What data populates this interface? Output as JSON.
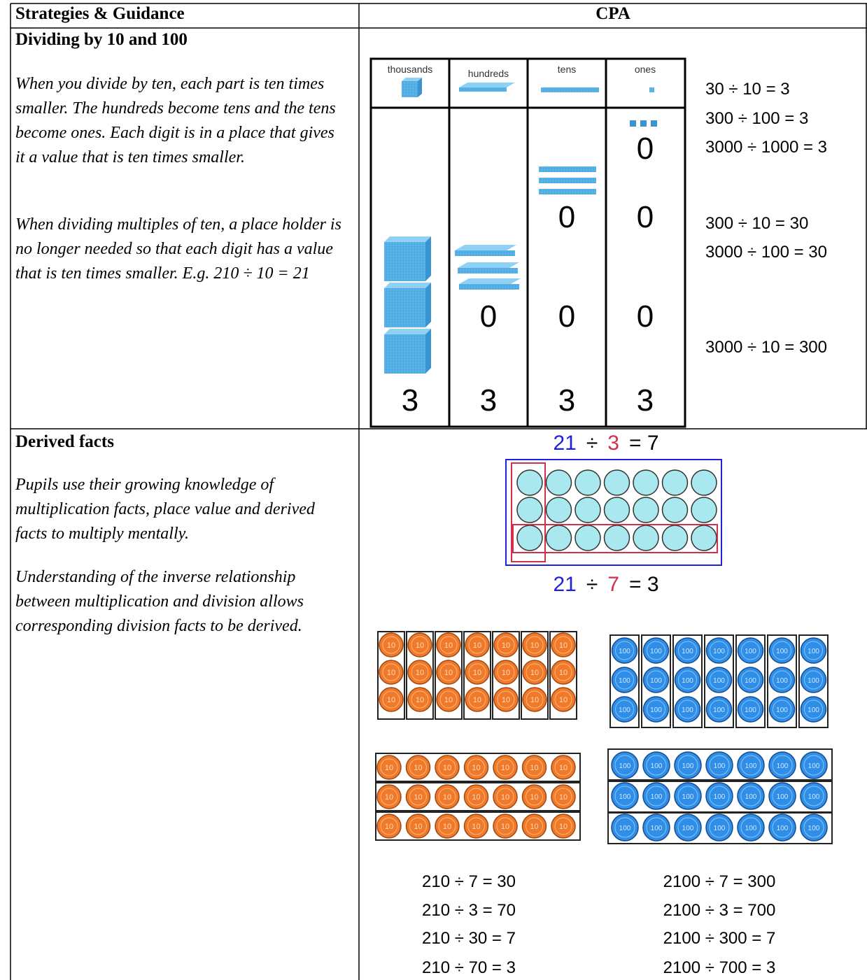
{
  "header": {
    "left": "Strategies & Guidance",
    "right": "CPA"
  },
  "rows": [
    {
      "title": "Dividing by 10 and 100",
      "paragraphs": [
        "When you divide by ten, each part is ten times smaller. The hundreds become tens and the tens become ones. Each digit is in a place that gives it a value that is ten times smaller.",
        "When dividing multiples of ten, a place holder is no longer needed so that each digit has a value that is ten times smaller. E.g. 210 ÷ 10 = 21"
      ],
      "place_value": {
        "columns": [
          {
            "label": "thousands",
            "digits": [
              "3"
            ]
          },
          {
            "label": "hundreds",
            "digits": [
              "3",
              "0"
            ]
          },
          {
            "label": "tens",
            "digits": [
              "3",
              "0",
              "0"
            ]
          },
          {
            "label": "ones",
            "digits": [
              "3",
              "0",
              "0",
              "0"
            ]
          }
        ]
      },
      "equations": [
        [
          "30 ÷ 10 = 3",
          "300 ÷ 100 = 3",
          "3000 ÷ 1000 = 3"
        ],
        [
          "300 ÷ 10 = 30",
          "3000 ÷ 100 = 30"
        ],
        [
          "3000 ÷ 10 = 300"
        ]
      ]
    },
    {
      "title": "Derived facts",
      "paragraphs": [
        "Pupils use their growing knowledge of multiplication facts, place value and derived facts to multiply mentally.",
        "Understanding of the inverse relationship between multiplication and division allows corresponding division facts to be derived."
      ],
      "array_equations": [
        {
          "dividend": "21",
          "sign": "÷",
          "divisor": "3",
          "result": "= 7"
        },
        {
          "dividend": "21",
          "sign": "÷",
          "divisor": "7",
          "result": "= 3"
        }
      ],
      "counters": {
        "tens": "10",
        "hundreds": "100"
      },
      "equations": {
        "tens": [
          "210 ÷ 7 = 30",
          "210 ÷ 3 = 70",
          "210 ÷ 30 = 7",
          "210 ÷ 70 = 3"
        ],
        "hundreds": [
          "2100 ÷ 7 = 300",
          "2100 ÷ 3 = 700",
          "2100 ÷ 300 = 7",
          "2100 ÷ 700 = 3"
        ]
      }
    }
  ]
}
